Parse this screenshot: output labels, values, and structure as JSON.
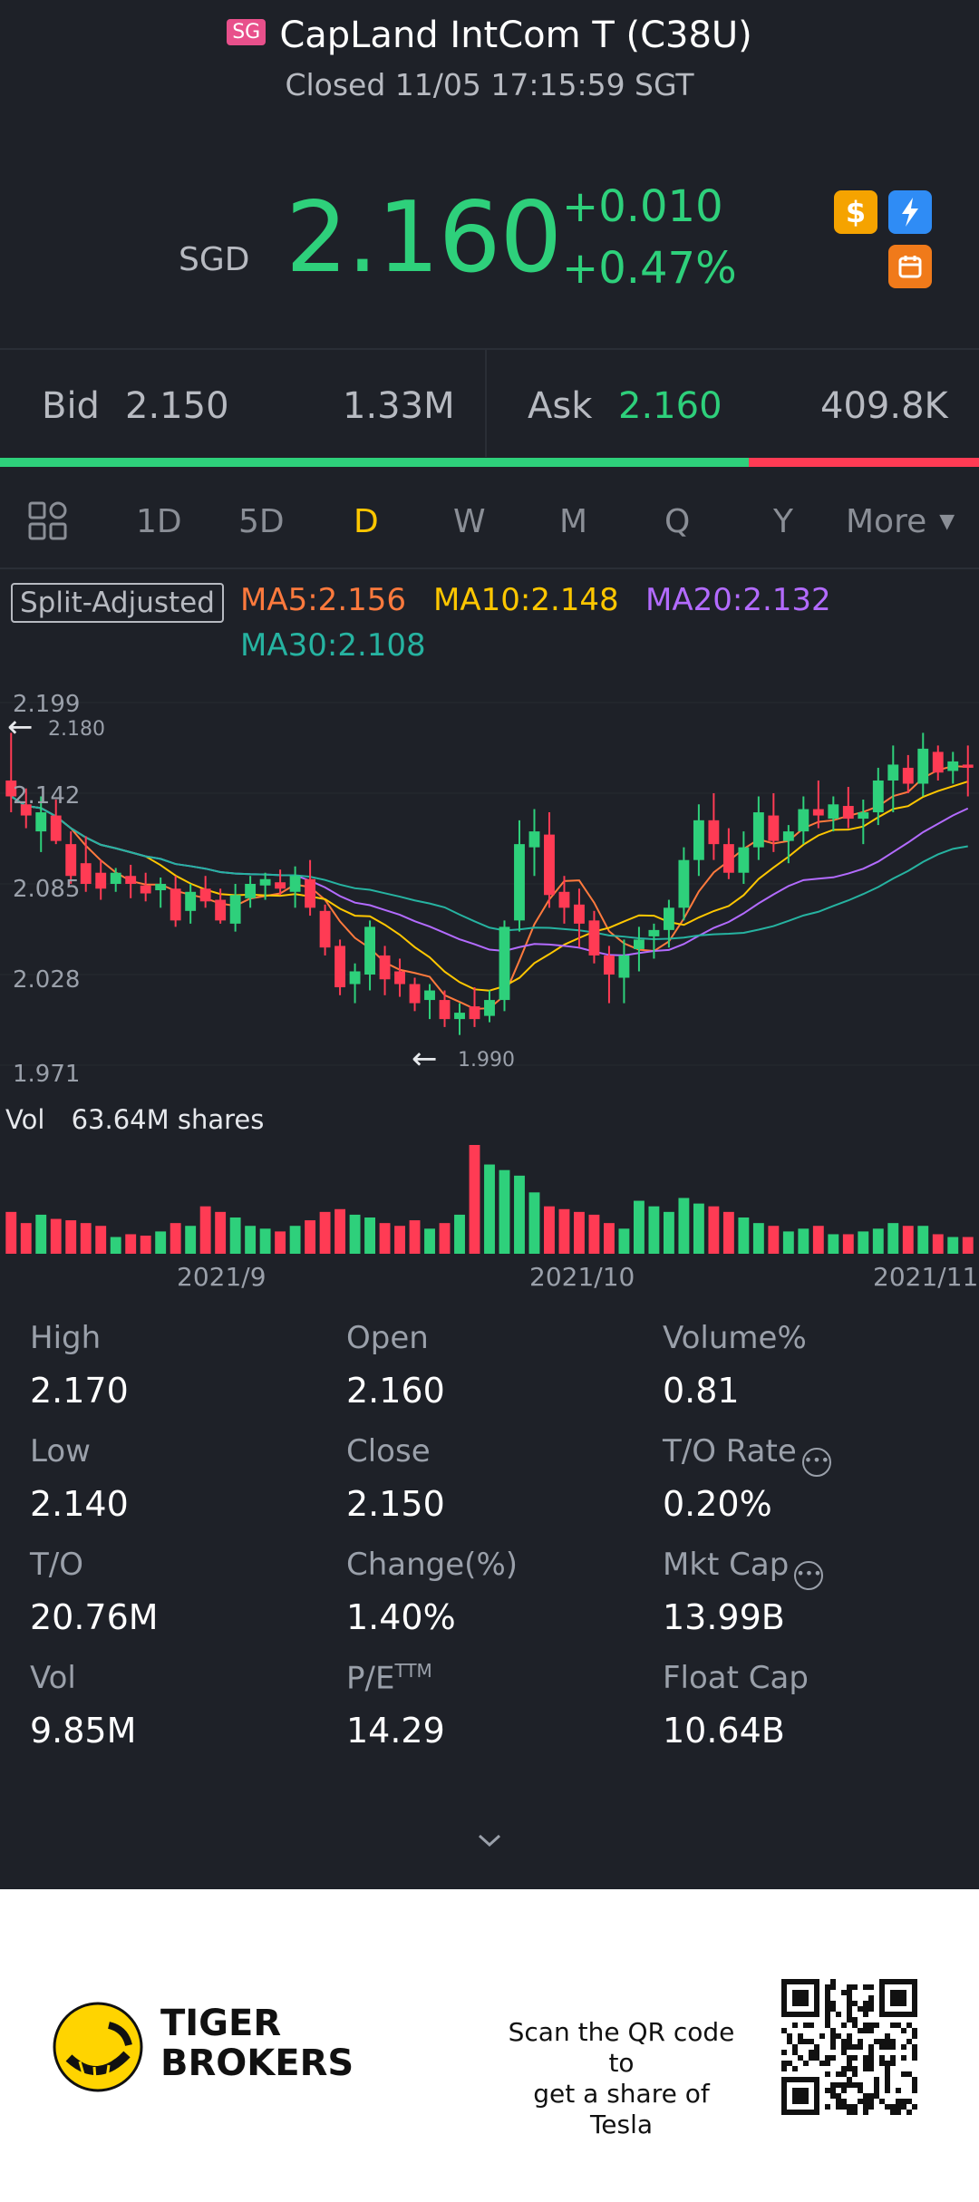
{
  "header": {
    "market_flag": "SG",
    "title": "CapLand IntCom T (C38U)",
    "status": "Closed 11/05 17:15:59 SGT"
  },
  "quote": {
    "currency": "SGD",
    "price": "2.160",
    "change": "+0.010",
    "change_pct": "+0.47%",
    "badge_icons": [
      "dollar-icon",
      "flash-icon",
      "calendar-icon"
    ],
    "colors": {
      "up": "#2ed07b",
      "down": "#ff3b54",
      "accent": "#ffc700"
    }
  },
  "bid_ask": {
    "bid_label": "Bid",
    "bid_price": "2.150",
    "bid_size": "1.33M",
    "ask_label": "Ask",
    "ask_price": "2.160",
    "ask_size": "409.8K",
    "bid_ratio": 0.765
  },
  "tabs": {
    "items": [
      "1D",
      "5D",
      "D",
      "W",
      "M",
      "Q",
      "Y",
      "More"
    ],
    "active": "D"
  },
  "chart": {
    "adjust_label": "Split-Adjusted",
    "ma5": "MA5:2.156",
    "ma10": "MA10:2.148",
    "ma20": "MA20:2.132",
    "ma30": "MA30:2.108",
    "y_ticks": [
      "2.199",
      "2.142",
      "2.085",
      "2.028",
      "1.971"
    ],
    "high_marker": "2.180",
    "low_marker": "1.990",
    "vol_label": "Vol",
    "vol_value": "63.64M shares",
    "x_labels": [
      "2021/9",
      "2021/10",
      "2021/11"
    ]
  },
  "chart_data": {
    "type": "candlestick",
    "ylim": [
      1.971,
      2.199
    ],
    "candles": [
      {
        "o": 2.15,
        "h": 2.18,
        "l": 2.13,
        "c": 2.14,
        "v": 30
      },
      {
        "o": 2.135,
        "h": 2.145,
        "l": 2.12,
        "c": 2.128,
        "v": 22
      },
      {
        "o": 2.118,
        "h": 2.14,
        "l": 2.105,
        "c": 2.13,
        "v": 28
      },
      {
        "o": 2.128,
        "h": 2.138,
        "l": 2.11,
        "c": 2.112,
        "v": 25
      },
      {
        "o": 2.11,
        "h": 2.118,
        "l": 2.085,
        "c": 2.09,
        "v": 24
      },
      {
        "o": 2.098,
        "h": 2.115,
        "l": 2.08,
        "c": 2.085,
        "v": 22
      },
      {
        "o": 2.092,
        "h": 2.1,
        "l": 2.075,
        "c": 2.082,
        "v": 20
      },
      {
        "o": 2.085,
        "h": 2.095,
        "l": 2.08,
        "c": 2.092,
        "v": 12
      },
      {
        "o": 2.09,
        "h": 2.097,
        "l": 2.076,
        "c": 2.085,
        "v": 14
      },
      {
        "o": 2.084,
        "h": 2.092,
        "l": 2.074,
        "c": 2.079,
        "v": 13
      },
      {
        "o": 2.081,
        "h": 2.089,
        "l": 2.07,
        "c": 2.085,
        "v": 16
      },
      {
        "o": 2.082,
        "h": 2.09,
        "l": 2.058,
        "c": 2.062,
        "v": 22
      },
      {
        "o": 2.068,
        "h": 2.085,
        "l": 2.06,
        "c": 2.08,
        "v": 20
      },
      {
        "o": 2.082,
        "h": 2.09,
        "l": 2.07,
        "c": 2.074,
        "v": 34
      },
      {
        "o": 2.075,
        "h": 2.082,
        "l": 2.06,
        "c": 2.062,
        "v": 30
      },
      {
        "o": 2.06,
        "h": 2.085,
        "l": 2.055,
        "c": 2.078,
        "v": 26
      },
      {
        "o": 2.076,
        "h": 2.09,
        "l": 2.07,
        "c": 2.085,
        "v": 20
      },
      {
        "o": 2.084,
        "h": 2.092,
        "l": 2.075,
        "c": 2.088,
        "v": 18
      },
      {
        "o": 2.086,
        "h": 2.094,
        "l": 2.078,
        "c": 2.082,
        "v": 16
      },
      {
        "o": 2.08,
        "h": 2.096,
        "l": 2.07,
        "c": 2.09,
        "v": 20
      },
      {
        "o": 2.088,
        "h": 2.1,
        "l": 2.065,
        "c": 2.07,
        "v": 24
      },
      {
        "o": 2.068,
        "h": 2.072,
        "l": 2.04,
        "c": 2.045,
        "v": 30
      },
      {
        "o": 2.046,
        "h": 2.05,
        "l": 2.015,
        "c": 2.02,
        "v": 32
      },
      {
        "o": 2.022,
        "h": 2.035,
        "l": 2.01,
        "c": 2.03,
        "v": 28
      },
      {
        "o": 2.028,
        "h": 2.062,
        "l": 2.018,
        "c": 2.058,
        "v": 26
      },
      {
        "o": 2.04,
        "h": 2.046,
        "l": 2.015,
        "c": 2.025,
        "v": 22
      },
      {
        "o": 2.03,
        "h": 2.038,
        "l": 2.014,
        "c": 2.022,
        "v": 20
      },
      {
        "o": 2.022,
        "h": 2.026,
        "l": 2.005,
        "c": 2.01,
        "v": 24
      },
      {
        "o": 2.012,
        "h": 2.022,
        "l": 2.0,
        "c": 2.018,
        "v": 18
      },
      {
        "o": 2.012,
        "h": 2.018,
        "l": 1.995,
        "c": 2.0,
        "v": 22
      },
      {
        "o": 2.0,
        "h": 2.01,
        "l": 1.99,
        "c": 2.004,
        "v": 28
      },
      {
        "o": 2.008,
        "h": 2.02,
        "l": 1.995,
        "c": 2.0,
        "v": 78
      },
      {
        "o": 2.002,
        "h": 2.018,
        "l": 1.998,
        "c": 2.012,
        "v": 64
      },
      {
        "o": 2.012,
        "h": 2.062,
        "l": 2.005,
        "c": 2.058,
        "v": 60
      },
      {
        "o": 2.062,
        "h": 2.125,
        "l": 2.055,
        "c": 2.11,
        "v": 56
      },
      {
        "o": 2.108,
        "h": 2.132,
        "l": 2.09,
        "c": 2.118,
        "v": 44
      },
      {
        "o": 2.116,
        "h": 2.13,
        "l": 2.07,
        "c": 2.078,
        "v": 34
      },
      {
        "o": 2.08,
        "h": 2.09,
        "l": 2.06,
        "c": 2.07,
        "v": 32
      },
      {
        "o": 2.072,
        "h": 2.082,
        "l": 2.045,
        "c": 2.06,
        "v": 30
      },
      {
        "o": 2.062,
        "h": 2.068,
        "l": 2.035,
        "c": 2.04,
        "v": 28
      },
      {
        "o": 2.04,
        "h": 2.046,
        "l": 2.01,
        "c": 2.028,
        "v": 22
      },
      {
        "o": 2.026,
        "h": 2.05,
        "l": 2.01,
        "c": 2.04,
        "v": 18
      },
      {
        "o": 2.044,
        "h": 2.058,
        "l": 2.03,
        "c": 2.05,
        "v": 38
      },
      {
        "o": 2.052,
        "h": 2.06,
        "l": 2.038,
        "c": 2.056,
        "v": 34
      },
      {
        "o": 2.056,
        "h": 2.075,
        "l": 2.045,
        "c": 2.07,
        "v": 30
      },
      {
        "o": 2.07,
        "h": 2.108,
        "l": 2.062,
        "c": 2.1,
        "v": 40
      },
      {
        "o": 2.1,
        "h": 2.135,
        "l": 2.09,
        "c": 2.125,
        "v": 36
      },
      {
        "o": 2.125,
        "h": 2.142,
        "l": 2.1,
        "c": 2.11,
        "v": 34
      },
      {
        "o": 2.11,
        "h": 2.12,
        "l": 2.088,
        "c": 2.092,
        "v": 30
      },
      {
        "o": 2.092,
        "h": 2.118,
        "l": 2.085,
        "c": 2.108,
        "v": 26
      },
      {
        "o": 2.108,
        "h": 2.14,
        "l": 2.1,
        "c": 2.13,
        "v": 22
      },
      {
        "o": 2.128,
        "h": 2.142,
        "l": 2.105,
        "c": 2.112,
        "v": 20
      },
      {
        "o": 2.112,
        "h": 2.122,
        "l": 2.098,
        "c": 2.118,
        "v": 16
      },
      {
        "o": 2.118,
        "h": 2.14,
        "l": 2.11,
        "c": 2.132,
        "v": 18
      },
      {
        "o": 2.132,
        "h": 2.15,
        "l": 2.12,
        "c": 2.128,
        "v": 20
      },
      {
        "o": 2.126,
        "h": 2.14,
        "l": 2.118,
        "c": 2.135,
        "v": 14
      },
      {
        "o": 2.134,
        "h": 2.146,
        "l": 2.12,
        "c": 2.126,
        "v": 14
      },
      {
        "o": 2.126,
        "h": 2.138,
        "l": 2.11,
        "c": 2.13,
        "v": 16
      },
      {
        "o": 2.13,
        "h": 2.158,
        "l": 2.122,
        "c": 2.15,
        "v": 18
      },
      {
        "o": 2.15,
        "h": 2.172,
        "l": 2.13,
        "c": 2.16,
        "v": 22
      },
      {
        "o": 2.158,
        "h": 2.166,
        "l": 2.142,
        "c": 2.148,
        "v": 20
      },
      {
        "o": 2.148,
        "h": 2.18,
        "l": 2.14,
        "c": 2.17,
        "v": 20
      },
      {
        "o": 2.168,
        "h": 2.172,
        "l": 2.15,
        "c": 2.155,
        "v": 14
      },
      {
        "o": 2.156,
        "h": 2.168,
        "l": 2.148,
        "c": 2.162,
        "v": 12
      },
      {
        "o": 2.16,
        "h": 2.172,
        "l": 2.14,
        "c": 2.158,
        "v": 12
      }
    ],
    "x_labels": [
      "2021/9",
      "2021/10",
      "2021/11"
    ]
  },
  "stats": [
    {
      "label": "High",
      "value": "2.170"
    },
    {
      "label": "Open",
      "value": "2.160"
    },
    {
      "label": "Volume%",
      "value": "0.81"
    },
    {
      "label": "Low",
      "value": "2.140"
    },
    {
      "label": "Close",
      "value": "2.150"
    },
    {
      "label": "T/O Rate",
      "value": "0.20%"
    },
    {
      "label": "T/O",
      "value": "20.76M"
    },
    {
      "label": "Change(%)",
      "value": "1.40%"
    },
    {
      "label": "Mkt Cap",
      "value": "13.99B"
    },
    {
      "label": "Vol",
      "value": "9.85M"
    },
    {
      "label": "P/E",
      "label_sup": "TTM",
      "value": "14.29"
    },
    {
      "label": "Float Cap",
      "value": "10.64B"
    }
  ],
  "footer": {
    "brand_line1": "TIGER",
    "brand_line2": "BROKERS",
    "scan_text_1": "Scan the QR code to",
    "scan_text_2": "get a share of Tesla"
  }
}
